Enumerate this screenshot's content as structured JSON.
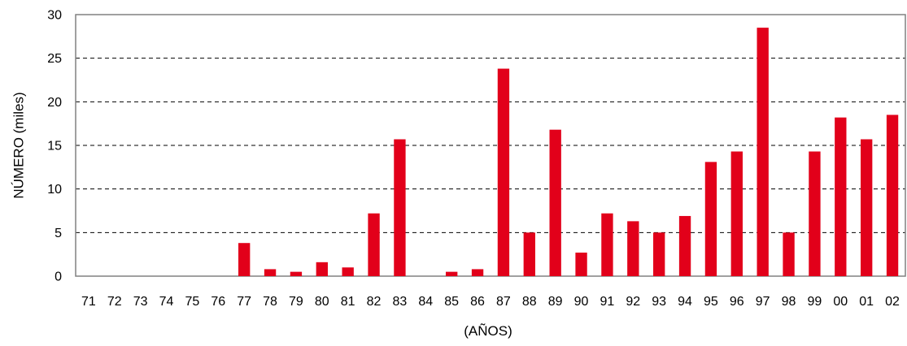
{
  "chart_data": {
    "type": "bar",
    "title": "",
    "xlabel": "(AÑOS)",
    "ylabel": "NÚMERO (miles)",
    "ylim": [
      0,
      30
    ],
    "yticks": [
      0,
      5,
      10,
      15,
      20,
      25,
      30
    ],
    "grid": "horizontal dashed",
    "bar_color": "#e2001a",
    "categories": [
      "71",
      "72",
      "73",
      "74",
      "75",
      "76",
      "77",
      "78",
      "79",
      "80",
      "81",
      "82",
      "83",
      "84",
      "85",
      "86",
      "87",
      "88",
      "89",
      "90",
      "91",
      "92",
      "93",
      "94",
      "95",
      "96",
      "97",
      "98",
      "99",
      "00",
      "01",
      "02"
    ],
    "values": [
      0,
      0,
      0,
      0,
      0,
      0,
      3.8,
      0.8,
      0.5,
      1.6,
      1.0,
      7.2,
      15.7,
      0,
      0.5,
      0.8,
      23.8,
      5.0,
      16.8,
      2.7,
      7.2,
      6.3,
      5.0,
      6.9,
      13.1,
      14.3,
      28.5,
      5.0,
      14.3,
      18.2,
      15.7,
      18.5
    ]
  }
}
